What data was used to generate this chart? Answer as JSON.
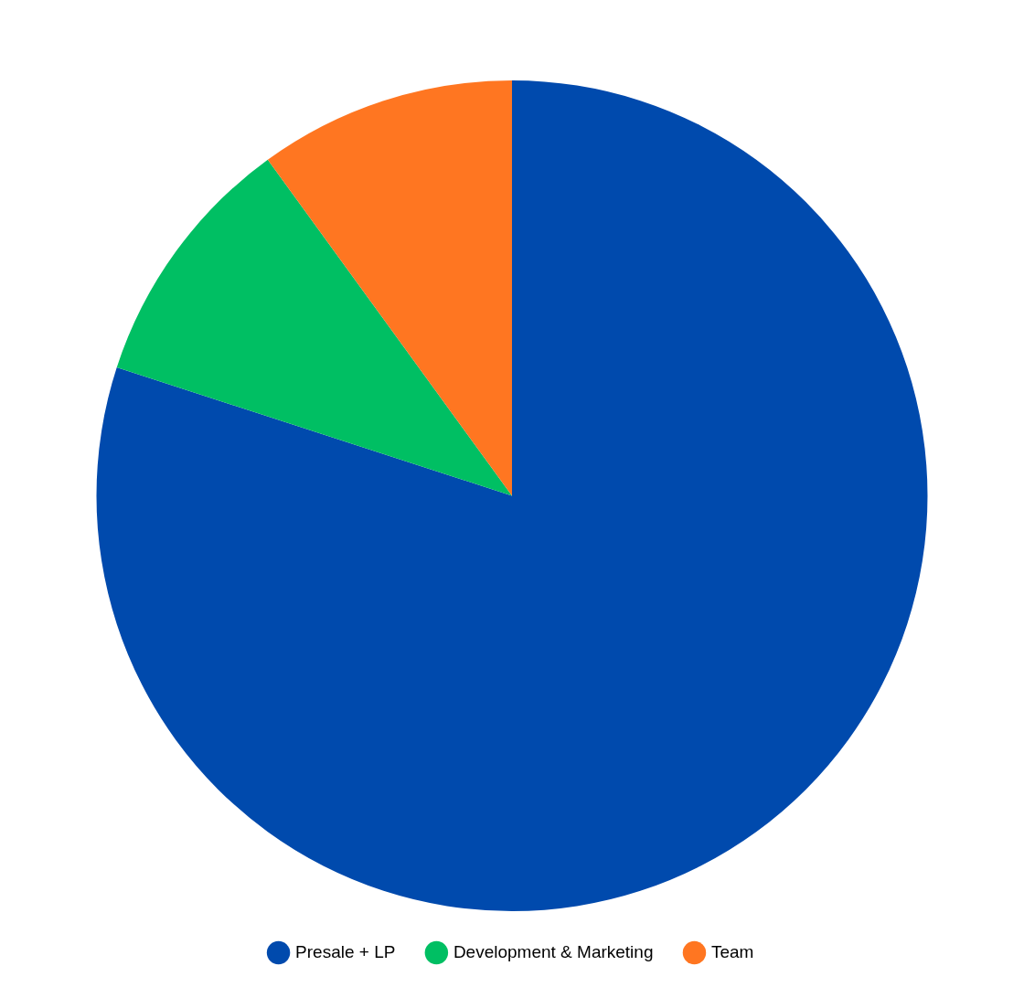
{
  "chart_data": {
    "type": "pie",
    "categories": [
      "Presale + LP",
      "Development & Marketing",
      "Team"
    ],
    "values": [
      80,
      10,
      10
    ],
    "colors": [
      "#004aad",
      "#00bf63",
      "#ff7621"
    ],
    "legend": "bottom"
  }
}
